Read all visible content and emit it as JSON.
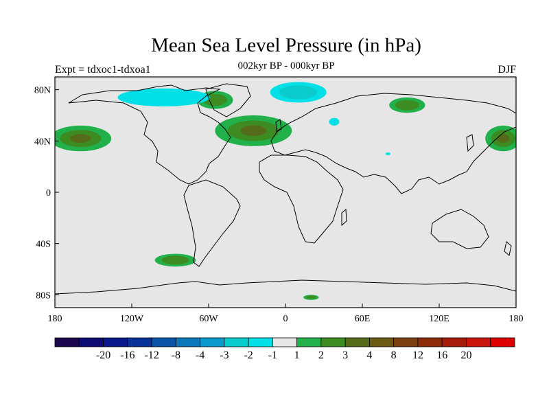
{
  "title": "Mean Sea Level Pressure (in hPa)",
  "experiment": "Expt = tdxoc1-tdxoa1",
  "period": "002kyr BP - 000kyr BP",
  "season": "DJF",
  "map": {
    "lon_range": [
      -180,
      180
    ],
    "lat_range": [
      -90,
      90
    ],
    "lon_ticks": [
      {
        "value": -180,
        "label": "180"
      },
      {
        "value": -120,
        "label": "120W"
      },
      {
        "value": -60,
        "label": "60W"
      },
      {
        "value": 0,
        "label": "0"
      },
      {
        "value": 60,
        "label": "60E"
      },
      {
        "value": 120,
        "label": "120E"
      },
      {
        "value": 180,
        "label": "180"
      }
    ],
    "lat_ticks": [
      {
        "value": 80,
        "label": "80N"
      },
      {
        "value": 40,
        "label": "40N"
      },
      {
        "value": 0,
        "label": "0"
      },
      {
        "value": -40,
        "label": "40S"
      },
      {
        "value": -80,
        "label": "80S"
      }
    ],
    "background_color": "#e6e6e6",
    "anomalies": [
      {
        "name": "north-pacific-positive",
        "lon": -160,
        "lat": 42,
        "rx": 24,
        "ry": 10,
        "level": 4
      },
      {
        "name": "north-pacific-positive-east",
        "lon": 170,
        "lat": 42,
        "rx": 14,
        "ry": 10,
        "level": 4
      },
      {
        "name": "north-atlantic-positive",
        "lon": -25,
        "lat": 48,
        "rx": 30,
        "ry": 12,
        "level": 4
      },
      {
        "name": "greenland-positive",
        "lon": -55,
        "lat": 72,
        "rx": 14,
        "ry": 7,
        "level": 2
      },
      {
        "name": "siberia-positive",
        "lon": 95,
        "lat": 68,
        "rx": 14,
        "ry": 6,
        "level": 2
      },
      {
        "name": "south-pacific-positive",
        "lon": -86,
        "lat": -53,
        "rx": 16,
        "ry": 5,
        "level": 2
      },
      {
        "name": "antarctic-positive",
        "lon": 20,
        "lat": -82,
        "rx": 6,
        "ry": 2,
        "level": 2
      },
      {
        "name": "arctic-canada-negative",
        "lon": -95,
        "lat": 74,
        "rx": 36,
        "ry": 7,
        "level": -1
      },
      {
        "name": "barents-negative",
        "lon": 10,
        "lat": 78,
        "rx": 22,
        "ry": 8,
        "level": -2
      },
      {
        "name": "caspian-negative",
        "lon": 38,
        "lat": 55,
        "rx": 4,
        "ry": 3,
        "level": -1
      },
      {
        "name": "india-negative",
        "lon": 80,
        "lat": 30,
        "rx": 2,
        "ry": 1,
        "level": -1
      }
    ]
  },
  "colorbar": {
    "colors": [
      "#1a0a4d",
      "#0d0d73",
      "#0a1a8c",
      "#0a3399",
      "#0a55a8",
      "#0a77bb",
      "#0a99cc",
      "#0acccc",
      "#00e0e6",
      "#e6e6e6",
      "#21b04a",
      "#3d8c22",
      "#556b1a",
      "#6b5a12",
      "#7a4010",
      "#8c2a0a",
      "#a61a0a",
      "#c8140a",
      "#dd0000"
    ],
    "labels": [
      "-20",
      "-16",
      "-12",
      "-8",
      "-4",
      "-3",
      "-2",
      "-1",
      "1",
      "2",
      "3",
      "4",
      "8",
      "12",
      "16",
      "20"
    ]
  }
}
